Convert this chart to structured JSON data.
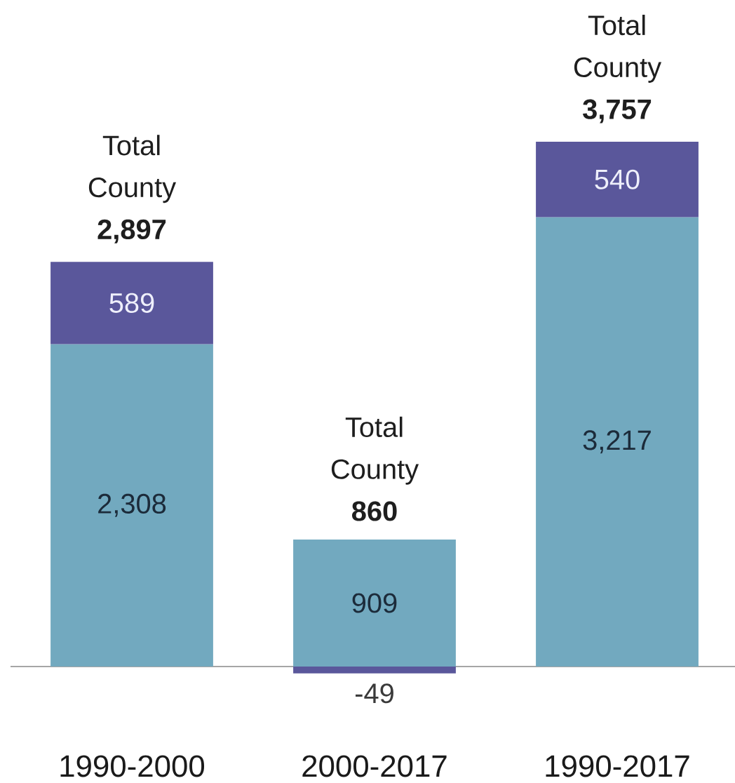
{
  "chart_data": {
    "type": "bar",
    "stacked": true,
    "categories": [
      "1990-2000",
      "2000-2017",
      "1990-2017"
    ],
    "series": [
      {
        "color": "#72a9bf",
        "values": [
          2308,
          909,
          3217
        ],
        "value_labels": [
          "2,308",
          "909",
          "3,217"
        ]
      },
      {
        "color": "#5a579b",
        "values": [
          589,
          -49,
          540
        ],
        "value_labels": [
          "589",
          "-49",
          "540"
        ]
      }
    ],
    "totals": [
      "Total County **2,897**",
      "Total County **860**",
      "Total County **3,757**"
    ],
    "tick_labels": "x"
  }
}
